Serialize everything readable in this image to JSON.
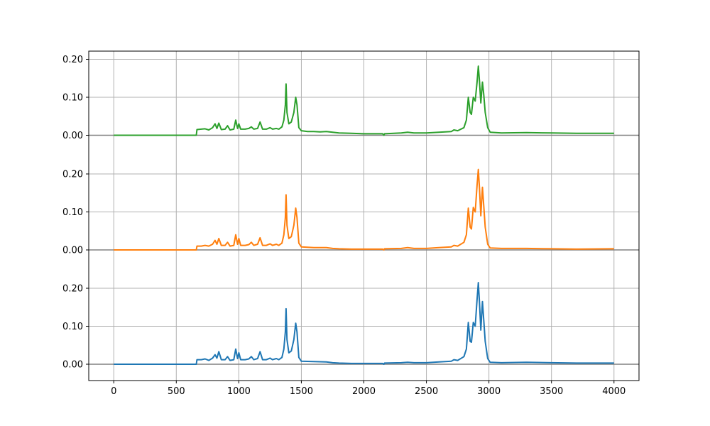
{
  "chart_data": {
    "type": "line",
    "xlim": [
      -200,
      4200
    ],
    "x_ticks": [
      0,
      500,
      1000,
      1500,
      2000,
      2500,
      3000,
      3500,
      4000
    ],
    "x_tick_labels": [
      "0",
      "500",
      "1000",
      "1500",
      "2000",
      "2500",
      "3000",
      "3500",
      "4000"
    ],
    "grid": true,
    "panels": [
      {
        "ylim": [
          -0.04,
          0.2
        ],
        "y_ticks": [
          0.0,
          0.1,
          0.2
        ],
        "y_tick_labels": [
          "0.00",
          "0.10",
          "0.20"
        ],
        "color": "#2ca02c",
        "points": [
          [
            0,
            0
          ],
          [
            660,
            0
          ],
          [
            665,
            0.015
          ],
          [
            700,
            0.016
          ],
          [
            730,
            0.017
          ],
          [
            760,
            0.014
          ],
          [
            790,
            0.02
          ],
          [
            810,
            0.03
          ],
          [
            825,
            0.018
          ],
          [
            840,
            0.032
          ],
          [
            860,
            0.015
          ],
          [
            890,
            0.016
          ],
          [
            910,
            0.025
          ],
          [
            930,
            0.014
          ],
          [
            960,
            0.016
          ],
          [
            975,
            0.04
          ],
          [
            990,
            0.018
          ],
          [
            1000,
            0.03
          ],
          [
            1015,
            0.016
          ],
          [
            1050,
            0.016
          ],
          [
            1080,
            0.018
          ],
          [
            1100,
            0.022
          ],
          [
            1120,
            0.016
          ],
          [
            1150,
            0.018
          ],
          [
            1170,
            0.035
          ],
          [
            1190,
            0.016
          ],
          [
            1220,
            0.016
          ],
          [
            1250,
            0.02
          ],
          [
            1270,
            0.016
          ],
          [
            1300,
            0.018
          ],
          [
            1320,
            0.016
          ],
          [
            1345,
            0.022
          ],
          [
            1360,
            0.04
          ],
          [
            1372,
            0.08
          ],
          [
            1378,
            0.135
          ],
          [
            1385,
            0.06
          ],
          [
            1400,
            0.03
          ],
          [
            1420,
            0.035
          ],
          [
            1440,
            0.06
          ],
          [
            1455,
            0.1
          ],
          [
            1465,
            0.08
          ],
          [
            1480,
            0.02
          ],
          [
            1500,
            0.012
          ],
          [
            1550,
            0.01
          ],
          [
            1600,
            0.01
          ],
          [
            1650,
            0.009
          ],
          [
            1700,
            0.01
          ],
          [
            1750,
            0.008
          ],
          [
            1800,
            0.006
          ],
          [
            1900,
            0.005
          ],
          [
            2000,
            0.004
          ],
          [
            2100,
            0.004
          ],
          [
            2150,
            0.004
          ],
          [
            2160,
            0.0
          ],
          [
            2165,
            0.004
          ],
          [
            2300,
            0.006
          ],
          [
            2350,
            0.008
          ],
          [
            2400,
            0.006
          ],
          [
            2500,
            0.006
          ],
          [
            2600,
            0.008
          ],
          [
            2700,
            0.01
          ],
          [
            2720,
            0.014
          ],
          [
            2750,
            0.012
          ],
          [
            2800,
            0.02
          ],
          [
            2820,
            0.04
          ],
          [
            2835,
            0.1
          ],
          [
            2850,
            0.06
          ],
          [
            2860,
            0.055
          ],
          [
            2875,
            0.1
          ],
          [
            2890,
            0.09
          ],
          [
            2905,
            0.14
          ],
          [
            2915,
            0.182
          ],
          [
            2925,
            0.14
          ],
          [
            2935,
            0.085
          ],
          [
            2948,
            0.14
          ],
          [
            2958,
            0.11
          ],
          [
            2970,
            0.06
          ],
          [
            2990,
            0.02
          ],
          [
            3010,
            0.008
          ],
          [
            3100,
            0.006
          ],
          [
            3300,
            0.007
          ],
          [
            3500,
            0.006
          ],
          [
            3700,
            0.005
          ],
          [
            4000,
            0.005
          ]
        ]
      },
      {
        "ylim": [
          -0.04,
          0.2
        ],
        "y_ticks": [
          0.0,
          0.1,
          0.2
        ],
        "y_tick_labels": [
          "0.00",
          "0.10",
          "0.20"
        ],
        "color": "#ff7f0e",
        "points": [
          [
            0,
            0
          ],
          [
            660,
            0
          ],
          [
            665,
            0.01
          ],
          [
            700,
            0.01
          ],
          [
            730,
            0.012
          ],
          [
            760,
            0.01
          ],
          [
            790,
            0.015
          ],
          [
            810,
            0.025
          ],
          [
            825,
            0.015
          ],
          [
            840,
            0.03
          ],
          [
            860,
            0.012
          ],
          [
            890,
            0.012
          ],
          [
            910,
            0.02
          ],
          [
            930,
            0.01
          ],
          [
            960,
            0.012
          ],
          [
            975,
            0.04
          ],
          [
            990,
            0.015
          ],
          [
            1000,
            0.03
          ],
          [
            1015,
            0.012
          ],
          [
            1050,
            0.012
          ],
          [
            1080,
            0.014
          ],
          [
            1100,
            0.02
          ],
          [
            1120,
            0.012
          ],
          [
            1150,
            0.015
          ],
          [
            1170,
            0.032
          ],
          [
            1190,
            0.012
          ],
          [
            1220,
            0.012
          ],
          [
            1250,
            0.016
          ],
          [
            1270,
            0.012
          ],
          [
            1300,
            0.015
          ],
          [
            1320,
            0.012
          ],
          [
            1345,
            0.018
          ],
          [
            1360,
            0.04
          ],
          [
            1372,
            0.085
          ],
          [
            1378,
            0.145
          ],
          [
            1385,
            0.065
          ],
          [
            1400,
            0.03
          ],
          [
            1420,
            0.035
          ],
          [
            1440,
            0.065
          ],
          [
            1455,
            0.11
          ],
          [
            1465,
            0.085
          ],
          [
            1480,
            0.018
          ],
          [
            1500,
            0.008
          ],
          [
            1600,
            0.006
          ],
          [
            1700,
            0.006
          ],
          [
            1750,
            0.004
          ],
          [
            1800,
            0.003
          ],
          [
            1900,
            0.002
          ],
          [
            2000,
            0.002
          ],
          [
            2100,
            0.002
          ],
          [
            2150,
            0.002
          ],
          [
            2160,
            0.0
          ],
          [
            2165,
            0.003
          ],
          [
            2300,
            0.004
          ],
          [
            2350,
            0.006
          ],
          [
            2400,
            0.004
          ],
          [
            2500,
            0.004
          ],
          [
            2600,
            0.006
          ],
          [
            2700,
            0.008
          ],
          [
            2720,
            0.012
          ],
          [
            2750,
            0.01
          ],
          [
            2800,
            0.02
          ],
          [
            2820,
            0.04
          ],
          [
            2835,
            0.11
          ],
          [
            2850,
            0.06
          ],
          [
            2860,
            0.055
          ],
          [
            2875,
            0.112
          ],
          [
            2890,
            0.1
          ],
          [
            2905,
            0.17
          ],
          [
            2915,
            0.212
          ],
          [
            2925,
            0.16
          ],
          [
            2935,
            0.09
          ],
          [
            2948,
            0.165
          ],
          [
            2958,
            0.12
          ],
          [
            2970,
            0.06
          ],
          [
            2990,
            0.015
          ],
          [
            3010,
            0.005
          ],
          [
            3100,
            0.004
          ],
          [
            3300,
            0.004
          ],
          [
            3500,
            0.003
          ],
          [
            3700,
            0.002
          ],
          [
            4000,
            0.003
          ]
        ]
      },
      {
        "ylim": [
          -0.04,
          0.2
        ],
        "y_ticks": [
          0.0,
          0.1,
          0.2
        ],
        "y_tick_labels": [
          "0.00",
          "0.10",
          "0.20"
        ],
        "color": "#1f77b4",
        "points": [
          [
            0,
            0
          ],
          [
            660,
            0
          ],
          [
            665,
            0.012
          ],
          [
            700,
            0.012
          ],
          [
            730,
            0.014
          ],
          [
            760,
            0.01
          ],
          [
            790,
            0.016
          ],
          [
            810,
            0.025
          ],
          [
            825,
            0.016
          ],
          [
            840,
            0.033
          ],
          [
            860,
            0.012
          ],
          [
            890,
            0.012
          ],
          [
            910,
            0.02
          ],
          [
            930,
            0.01
          ],
          [
            960,
            0.012
          ],
          [
            975,
            0.04
          ],
          [
            990,
            0.015
          ],
          [
            1000,
            0.03
          ],
          [
            1015,
            0.012
          ],
          [
            1050,
            0.012
          ],
          [
            1080,
            0.014
          ],
          [
            1100,
            0.02
          ],
          [
            1120,
            0.012
          ],
          [
            1150,
            0.015
          ],
          [
            1170,
            0.033
          ],
          [
            1190,
            0.012
          ],
          [
            1220,
            0.012
          ],
          [
            1250,
            0.016
          ],
          [
            1270,
            0.012
          ],
          [
            1300,
            0.015
          ],
          [
            1320,
            0.012
          ],
          [
            1345,
            0.018
          ],
          [
            1360,
            0.04
          ],
          [
            1372,
            0.085
          ],
          [
            1378,
            0.146
          ],
          [
            1385,
            0.065
          ],
          [
            1400,
            0.03
          ],
          [
            1420,
            0.035
          ],
          [
            1440,
            0.065
          ],
          [
            1455,
            0.108
          ],
          [
            1465,
            0.085
          ],
          [
            1480,
            0.018
          ],
          [
            1500,
            0.008
          ],
          [
            1600,
            0.007
          ],
          [
            1700,
            0.006
          ],
          [
            1750,
            0.004
          ],
          [
            1800,
            0.003
          ],
          [
            1900,
            0.002
          ],
          [
            2000,
            0.002
          ],
          [
            2100,
            0.002
          ],
          [
            2150,
            0.002
          ],
          [
            2160,
            0.0
          ],
          [
            2165,
            0.003
          ],
          [
            2300,
            0.004
          ],
          [
            2350,
            0.005
          ],
          [
            2400,
            0.004
          ],
          [
            2500,
            0.004
          ],
          [
            2600,
            0.006
          ],
          [
            2700,
            0.008
          ],
          [
            2720,
            0.012
          ],
          [
            2750,
            0.01
          ],
          [
            2800,
            0.02
          ],
          [
            2820,
            0.04
          ],
          [
            2835,
            0.11
          ],
          [
            2850,
            0.06
          ],
          [
            2860,
            0.058
          ],
          [
            2875,
            0.11
          ],
          [
            2890,
            0.1
          ],
          [
            2905,
            0.17
          ],
          [
            2915,
            0.215
          ],
          [
            2925,
            0.16
          ],
          [
            2935,
            0.09
          ],
          [
            2948,
            0.165
          ],
          [
            2958,
            0.12
          ],
          [
            2970,
            0.06
          ],
          [
            2990,
            0.015
          ],
          [
            3010,
            0.005
          ],
          [
            3100,
            0.004
          ],
          [
            3300,
            0.005
          ],
          [
            3500,
            0.004
          ],
          [
            3700,
            0.003
          ],
          [
            4000,
            0.003
          ]
        ]
      }
    ]
  }
}
